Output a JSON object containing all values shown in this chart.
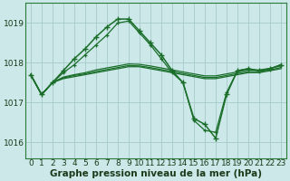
{
  "background_color": "#cce8e8",
  "grid_color": "#aacece",
  "line_color": "#1a6e2a",
  "xlabel": "Graphe pression niveau de la mer (hPa)",
  "xlabel_fontsize": 7.5,
  "tick_fontsize": 6.5,
  "ylabel_ticks": [
    1016,
    1017,
    1018,
    1019
  ],
  "xlim": [
    -0.5,
    23.5
  ],
  "ylim": [
    1015.6,
    1019.5
  ],
  "xticks": [
    0,
    1,
    2,
    3,
    4,
    5,
    6,
    7,
    8,
    9,
    10,
    11,
    12,
    13,
    14,
    15,
    16,
    17,
    18,
    19,
    20,
    21,
    22,
    23
  ],
  "series_main": [
    1017.7,
    1017.2,
    1017.5,
    1017.8,
    1018.1,
    1018.35,
    1018.65,
    1018.9,
    1019.1,
    1019.1,
    1018.8,
    1018.5,
    1018.2,
    1017.8,
    1017.5,
    1016.6,
    1016.45,
    1016.1,
    1017.2,
    1017.8,
    1017.85,
    1017.8,
    1017.85,
    1017.95
  ],
  "series_flat1": [
    1017.7,
    1017.2,
    1017.5,
    1017.6,
    1017.65,
    1017.7,
    1017.75,
    1017.8,
    1017.85,
    1017.9,
    1017.9,
    1017.85,
    1017.8,
    1017.75,
    1017.7,
    1017.65,
    1017.6,
    1017.6,
    1017.65,
    1017.7,
    1017.75,
    1017.75,
    1017.8,
    1017.85
  ],
  "series_flat2": [
    1017.7,
    1017.2,
    1017.5,
    1017.62,
    1017.68,
    1017.72,
    1017.78,
    1017.83,
    1017.88,
    1017.93,
    1017.92,
    1017.88,
    1017.83,
    1017.78,
    1017.73,
    1017.68,
    1017.63,
    1017.63,
    1017.68,
    1017.73,
    1017.78,
    1017.78,
    1017.82,
    1017.88
  ],
  "series_flat3": [
    1017.7,
    1017.2,
    1017.5,
    1017.64,
    1017.7,
    1017.75,
    1017.82,
    1017.87,
    1017.92,
    1017.97,
    1017.96,
    1017.92,
    1017.87,
    1017.82,
    1017.77,
    1017.72,
    1017.67,
    1017.67,
    1017.72,
    1017.77,
    1017.82,
    1017.82,
    1017.86,
    1017.92
  ],
  "series_marker2": [
    1017.7,
    1017.2,
    1017.5,
    1017.75,
    1017.95,
    1018.2,
    1018.45,
    1018.7,
    1019.0,
    1019.05,
    1018.75,
    1018.45,
    1018.1,
    1017.75,
    1017.5,
    1016.55,
    1016.3,
    1016.25,
    1017.25,
    1017.8,
    1017.85,
    1017.8,
    1017.85,
    1017.95
  ]
}
